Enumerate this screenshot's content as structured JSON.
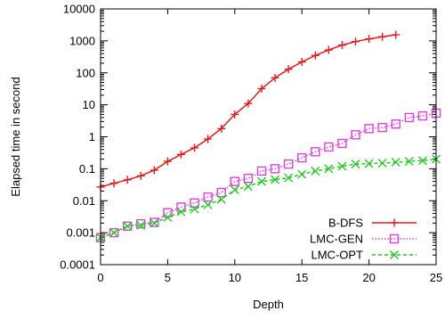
{
  "chart_data": {
    "type": "line",
    "xlabel": "Depth",
    "ylabel": "Elapsed time in second",
    "xlim": [
      0,
      25
    ],
    "ylim": [
      0.0001,
      10000
    ],
    "yscale": "log",
    "grid": false,
    "legend_position": "bottom-right",
    "x_ticks": [
      0,
      5,
      10,
      15,
      20,
      25
    ],
    "x_tick_labels": [
      "0",
      "5",
      "10",
      "15",
      "20",
      "25"
    ],
    "y_ticks": [
      0.0001,
      0.001,
      0.01,
      0.1,
      1,
      10,
      100,
      1000,
      10000
    ],
    "y_tick_labels": [
      "0.0001",
      "0.001",
      "0.01",
      "0.1",
      "1",
      "10",
      "100",
      "1000",
      "10000"
    ],
    "series": [
      {
        "name": "B-DFS",
        "color": "#e41a1c",
        "marker": "plus",
        "line": "solid",
        "x": [
          0,
          1,
          2,
          3,
          4,
          5,
          6,
          7,
          8,
          9,
          10,
          11,
          12,
          13,
          14,
          15,
          16,
          17,
          18,
          19,
          20,
          21,
          22
        ],
        "y": [
          0.027,
          0.035,
          0.045,
          0.06,
          0.09,
          0.17,
          0.28,
          0.45,
          0.85,
          1.8,
          5.0,
          11,
          32,
          70,
          130,
          220,
          350,
          520,
          740,
          950,
          1150,
          1350,
          1550
        ]
      },
      {
        "name": "LMC-GEN",
        "color": "#e040e0",
        "marker": "square",
        "line": "dotted",
        "x": [
          0,
          1,
          2,
          3,
          4,
          5,
          6,
          7,
          8,
          9,
          10,
          11,
          12,
          13,
          14,
          15,
          16,
          17,
          18,
          19,
          20,
          21,
          22,
          23,
          24,
          25
        ],
        "y": [
          0.0007,
          0.001,
          0.0016,
          0.0019,
          0.0021,
          0.0042,
          0.0063,
          0.0085,
          0.013,
          0.018,
          0.04,
          0.05,
          0.085,
          0.1,
          0.14,
          0.22,
          0.34,
          0.48,
          0.62,
          1.15,
          1.8,
          1.95,
          2.5,
          4.0,
          4.5,
          5.5
        ]
      },
      {
        "name": "LMC-OPT",
        "color": "#22cc22",
        "marker": "x",
        "line": "dashed",
        "x": [
          0,
          1,
          2,
          3,
          4,
          5,
          6,
          7,
          8,
          9,
          10,
          11,
          12,
          13,
          14,
          15,
          16,
          17,
          18,
          19,
          20,
          21,
          22,
          23,
          24,
          25
        ],
        "y": [
          0.0007,
          0.001,
          0.0016,
          0.0017,
          0.002,
          0.003,
          0.0045,
          0.0055,
          0.0075,
          0.011,
          0.022,
          0.028,
          0.04,
          0.046,
          0.052,
          0.067,
          0.085,
          0.1,
          0.12,
          0.14,
          0.145,
          0.15,
          0.16,
          0.17,
          0.18,
          0.2
        ]
      }
    ]
  }
}
